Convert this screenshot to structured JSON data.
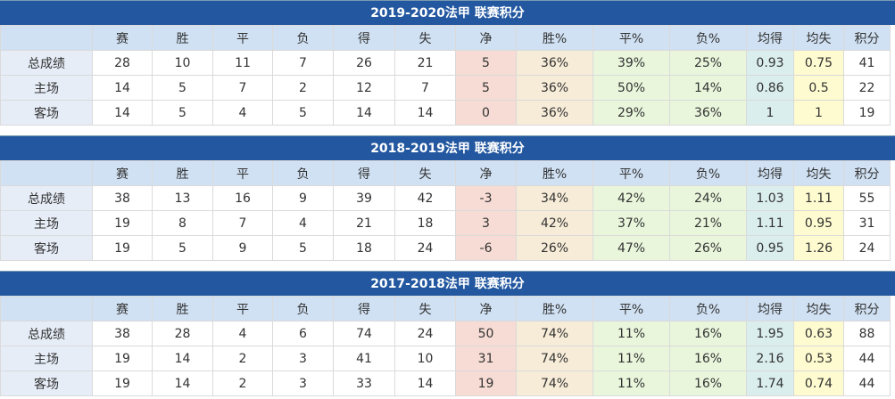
{
  "headers": [
    "",
    "赛",
    "胜",
    "平",
    "负",
    "得",
    "失",
    "净",
    "胜%",
    "平%",
    "负%",
    "均得",
    "均失",
    "积分"
  ],
  "tables": [
    {
      "title": "2019-2020法甲 联赛积分",
      "rows": [
        [
          "总成绩",
          "28",
          "10",
          "11",
          "7",
          "26",
          "21",
          "5",
          "36%",
          "39%",
          "25%",
          "0.93",
          "0.75",
          "41"
        ],
        [
          "主场",
          "14",
          "5",
          "7",
          "2",
          "12",
          "7",
          "5",
          "36%",
          "50%",
          "14%",
          "0.86",
          "0.5",
          "22"
        ],
        [
          "客场",
          "14",
          "5",
          "4",
          "5",
          "14",
          "14",
          "0",
          "36%",
          "29%",
          "36%",
          "1",
          "1",
          "19"
        ]
      ]
    },
    {
      "title": "2018-2019法甲 联赛积分",
      "rows": [
        [
          "总成绩",
          "38",
          "13",
          "16",
          "9",
          "39",
          "42",
          "-3",
          "34%",
          "42%",
          "24%",
          "1.03",
          "1.11",
          "55"
        ],
        [
          "主场",
          "19",
          "8",
          "7",
          "4",
          "21",
          "18",
          "3",
          "42%",
          "37%",
          "21%",
          "1.11",
          "0.95",
          "31"
        ],
        [
          "客场",
          "19",
          "5",
          "9",
          "5",
          "18",
          "24",
          "-6",
          "26%",
          "47%",
          "26%",
          "0.95",
          "1.26",
          "24"
        ]
      ]
    },
    {
      "title": "2017-2018法甲 联赛积分",
      "rows": [
        [
          "总成绩",
          "38",
          "28",
          "4",
          "6",
          "74",
          "24",
          "50",
          "74%",
          "11%",
          "16%",
          "1.95",
          "0.63",
          "88"
        ],
        [
          "主场",
          "19",
          "14",
          "2",
          "3",
          "41",
          "10",
          "31",
          "74%",
          "11%",
          "16%",
          "2.16",
          "0.53",
          "44"
        ],
        [
          "客场",
          "19",
          "14",
          "2",
          "3",
          "33",
          "14",
          "19",
          "74%",
          "11%",
          "16%",
          "1.74",
          "0.74",
          "44"
        ]
      ]
    }
  ]
}
